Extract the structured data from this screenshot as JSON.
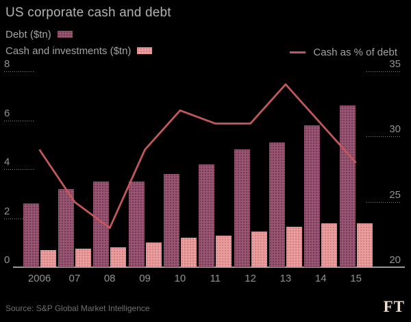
{
  "title": "US corporate cash and debt",
  "legend": {
    "debt": "Debt ($tn)",
    "cash": "Cash and investments ($tn)",
    "line": "Cash as % of debt"
  },
  "footer": {
    "source": "Source: S&P Global Market Intelligence",
    "logo": "FT"
  },
  "colors": {
    "background": "#000000",
    "debt_bar": "#9a5573",
    "cash_bar": "#eb9e9e",
    "line": "#c2585c",
    "grid_dots": "#8f8f8f",
    "axis_line": "#999999",
    "title_text": "#b3b3b3",
    "legend_text": "#a3a3a3",
    "tick_text": "#929292",
    "source_text": "#707070",
    "logo_text": "#f1dfd0"
  },
  "chart_data": {
    "type": "bar",
    "title": "US corporate cash and debt",
    "categories": [
      "2006",
      "07",
      "08",
      "09",
      "10",
      "11",
      "12",
      "13",
      "14",
      "15"
    ],
    "series": [
      {
        "name": "Debt ($tn)",
        "type": "bar",
        "axis": "left",
        "values": [
          2.6,
          3.2,
          3.5,
          3.5,
          3.8,
          4.2,
          4.8,
          5.1,
          5.8,
          6.6
        ]
      },
      {
        "name": "Cash and investments ($tn)",
        "type": "bar",
        "axis": "left",
        "values": [
          0.7,
          0.75,
          0.8,
          1.0,
          1.2,
          1.3,
          1.45,
          1.65,
          1.8,
          1.8
        ]
      },
      {
        "name": "Cash as % of debt",
        "type": "line",
        "axis": "right",
        "values": [
          29,
          25,
          23,
          29,
          32,
          31,
          31,
          34,
          31,
          28
        ]
      }
    ],
    "left_axis": {
      "min": 0,
      "max": 8,
      "ticks": [
        0,
        2,
        4,
        6,
        8
      ]
    },
    "right_axis": {
      "min": 20,
      "max": 35,
      "ticks": [
        20,
        25,
        30,
        35
      ]
    },
    "grid": "dotted edge ticks on both sides",
    "legend_position": "top"
  }
}
